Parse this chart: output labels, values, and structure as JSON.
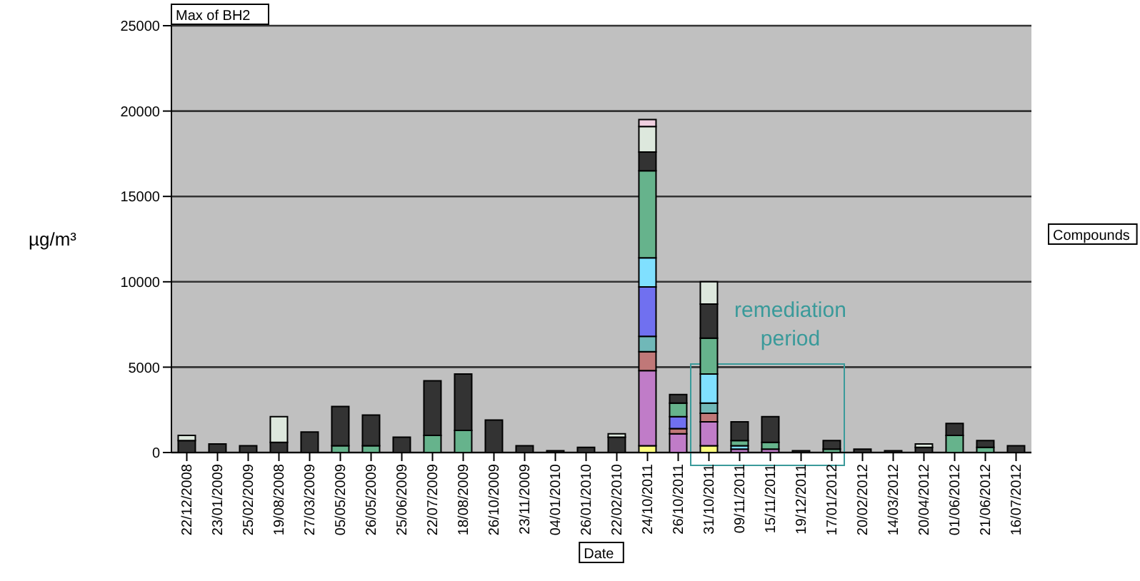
{
  "chart_data": {
    "type": "bar",
    "stacked": true,
    "title": "Max of BH2",
    "xlabel": "Date",
    "ylabel": "µg/m³",
    "categories": [
      "22/12/2008",
      "23/01/2009",
      "25/02/2009",
      "19/08/2008",
      "27/03/2009",
      "05/05/2009",
      "26/05/2009",
      "25/06/2009",
      "22/07/2009",
      "18/08/2009",
      "26/10/2009",
      "23/11/2009",
      "04/01/2010",
      "26/01/2010",
      "22/02/2010",
      "24/10/2011",
      "26/10/2011",
      "31/10/2011",
      "09/11/2011",
      "15/11/2011",
      "19/12/2011",
      "17/01/2012",
      "20/02/2012",
      "14/03/2012",
      "20/04/2012",
      "01/06/2012",
      "21/06/2012",
      "16/07/2012"
    ],
    "series": [
      {
        "color": "#ffff80",
        "values": [
          0,
          0,
          0,
          0,
          0,
          0,
          0,
          0,
          0,
          0,
          0,
          0,
          0,
          0,
          0,
          400,
          0,
          400,
          0,
          0,
          0,
          0,
          0,
          0,
          0,
          0,
          0,
          0
        ]
      },
      {
        "color": "#c07cc8",
        "values": [
          0,
          0,
          0,
          0,
          0,
          0,
          0,
          0,
          0,
          0,
          0,
          0,
          0,
          0,
          0,
          4400,
          1100,
          1400,
          200,
          200,
          0,
          0,
          0,
          0,
          0,
          0,
          0,
          0
        ]
      },
      {
        "color": "#c07878",
        "values": [
          0,
          0,
          0,
          0,
          0,
          0,
          0,
          0,
          0,
          0,
          0,
          0,
          0,
          0,
          0,
          1100,
          300,
          500,
          0,
          0,
          0,
          0,
          0,
          0,
          0,
          0,
          0,
          0
        ]
      },
      {
        "color": "#70b8b8",
        "values": [
          0,
          0,
          0,
          0,
          0,
          0,
          0,
          0,
          0,
          0,
          0,
          0,
          0,
          0,
          0,
          900,
          0,
          600,
          0,
          0,
          0,
          0,
          0,
          0,
          0,
          0,
          0,
          0
        ]
      },
      {
        "color": "#7070f0",
        "values": [
          0,
          0,
          0,
          0,
          0,
          0,
          0,
          0,
          0,
          0,
          0,
          0,
          0,
          0,
          0,
          2900,
          700,
          0,
          0,
          0,
          0,
          0,
          0,
          0,
          0,
          0,
          0,
          0
        ]
      },
      {
        "color": "#80e0ff",
        "values": [
          0,
          0,
          0,
          0,
          0,
          0,
          0,
          0,
          0,
          0,
          0,
          0,
          0,
          0,
          0,
          1700,
          0,
          1700,
          200,
          0,
          0,
          0,
          0,
          0,
          0,
          0,
          0,
          0
        ]
      },
      {
        "color": "#66b38c",
        "values": [
          0,
          0,
          0,
          0,
          0,
          400,
          400,
          0,
          1000,
          1300,
          0,
          null,
          0,
          0,
          0,
          5100,
          800,
          2100,
          300,
          400,
          0,
          200,
          0,
          0,
          0,
          1000,
          300,
          0
        ]
      },
      {
        "color": "#333333",
        "values": [
          700,
          500,
          400,
          600,
          1200,
          2300,
          1800,
          900,
          3200,
          3300,
          1900,
          400,
          100,
          300,
          900,
          1100,
          500,
          2000,
          1100,
          1500,
          100,
          500,
          200,
          100,
          300,
          700,
          400,
          400
        ]
      },
      {
        "color": "#dde8dd",
        "values": [
          300,
          0,
          0,
          1500,
          0,
          0,
          0,
          0,
          0,
          0,
          0,
          0,
          0,
          0,
          200,
          1500,
          0,
          1300,
          0,
          0,
          0,
          0,
          0,
          0,
          200,
          0,
          0,
          0
        ]
      },
      {
        "color": "#f0d0e0",
        "values": [
          0,
          0,
          0,
          0,
          0,
          0,
          0,
          0,
          0,
          0,
          0,
          0,
          0,
          0,
          0,
          400,
          0,
          0,
          0,
          0,
          0,
          0,
          0,
          0,
          0,
          0,
          0,
          0
        ]
      }
    ],
    "ylim": [
      0,
      25000
    ],
    "yticks": [
      0,
      5000,
      10000,
      15000,
      20000,
      25000
    ],
    "grid": "y",
    "legend": false,
    "annotations": [
      "Compounds",
      "remediation period"
    ]
  }
}
